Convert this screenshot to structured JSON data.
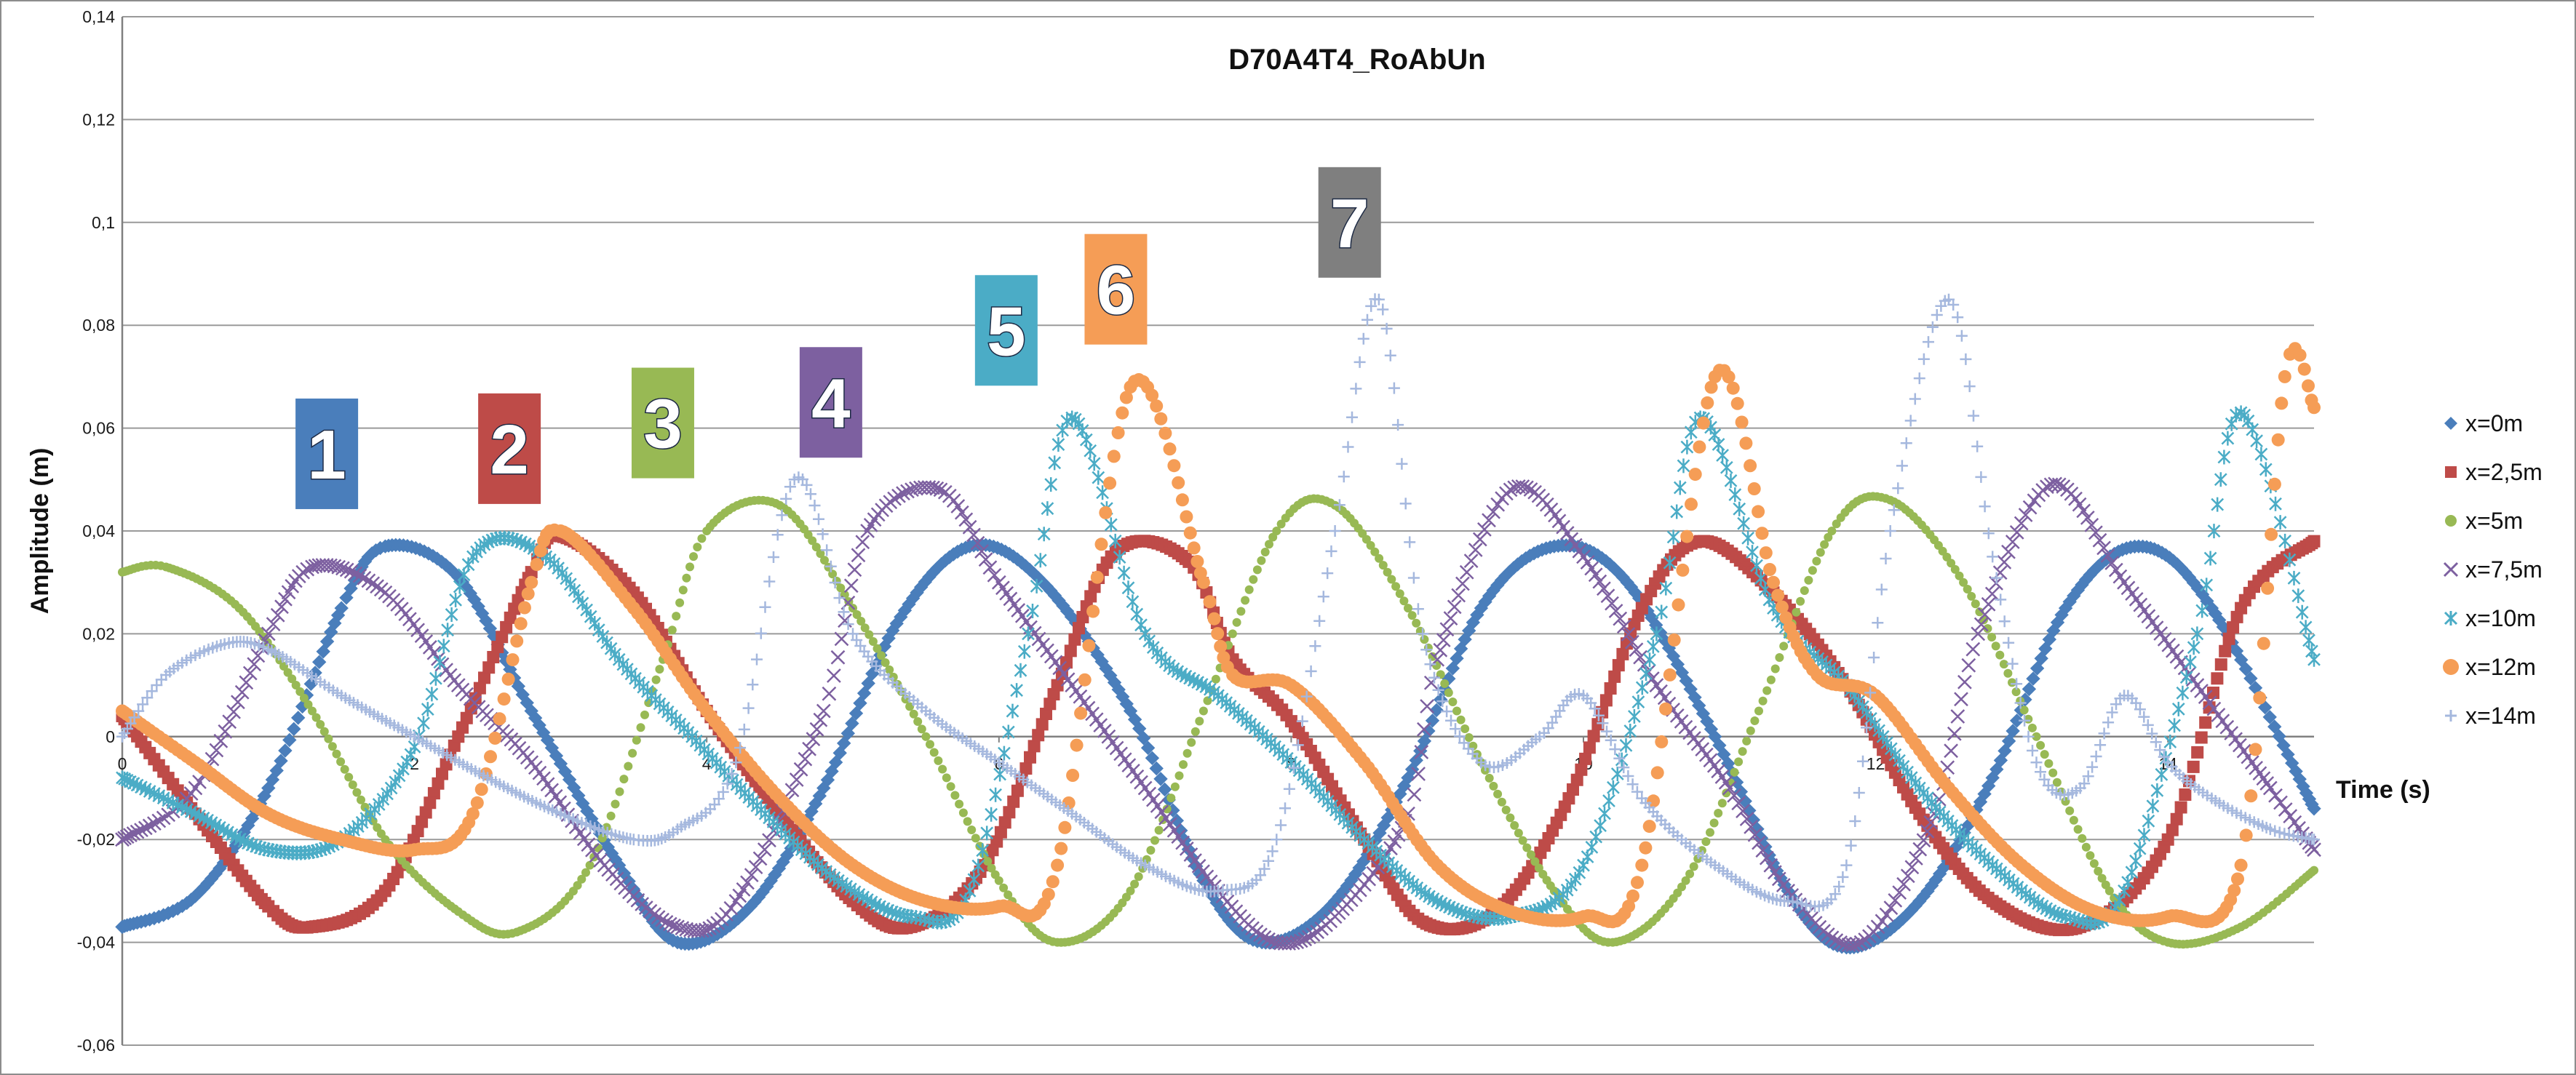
{
  "chart_data": {
    "type": "scatter",
    "title": "D70A4T4_RoAbUn",
    "xlabel": "Time (s)",
    "ylabel": "Amplitude (m)",
    "xlim": [
      0,
      15
    ],
    "ylim": [
      -0.06,
      0.14
    ],
    "x_ticks": [
      "0",
      "2",
      "4",
      "6",
      "8",
      "10",
      "12",
      "14"
    ],
    "y_ticks": [
      "-0,06",
      "-0,04",
      "-0,02",
      "0",
      "0,02",
      "0,04",
      "0,06",
      "0,08",
      "0,1",
      "0,12",
      "0,14"
    ],
    "grid": "horizontal",
    "legend_position": "right",
    "series": [
      {
        "name": "x=0m",
        "color": "#4a7ebb",
        "marker": "diamond",
        "x": [
          0,
          0.5,
          1.0,
          1.5,
          1.8,
          2.3,
          2.8,
          3.4,
          3.8,
          4.3,
          4.8,
          5.3,
          5.8,
          6.3,
          6.9,
          7.4,
          7.8,
          8.3,
          8.8,
          9.3,
          9.8,
          10.3,
          10.9,
          11.4,
          11.8,
          12.3,
          12.8,
          13.3,
          13.8,
          14.3,
          15.0
        ],
        "y": [
          -0.037,
          -0.031,
          -0.01,
          0.025,
          0.037,
          0.031,
          0.005,
          -0.025,
          -0.04,
          -0.033,
          -0.01,
          0.022,
          0.037,
          0.03,
          0.005,
          -0.028,
          -0.04,
          -0.032,
          -0.008,
          0.025,
          0.037,
          0.03,
          0.0,
          -0.03,
          -0.041,
          -0.032,
          -0.008,
          0.025,
          0.037,
          0.025,
          -0.014
        ]
      },
      {
        "name": "x=2,5m",
        "color": "#be4b48",
        "marker": "square",
        "x": [
          0,
          0.5,
          1.0,
          1.3,
          1.8,
          2.3,
          2.8,
          3.0,
          3.5,
          4.0,
          4.5,
          5.0,
          5.4,
          5.9,
          6.4,
          6.8,
          7.3,
          7.6,
          8.0,
          8.5,
          8.9,
          9.4,
          9.9,
          10.4,
          10.8,
          11.3,
          11.8,
          12.3,
          12.8,
          13.4,
          14.0,
          14.5,
          15.0
        ],
        "y": [
          0.004,
          -0.015,
          -0.033,
          -0.037,
          -0.03,
          0.0,
          0.032,
          0.039,
          0.028,
          0.005,
          -0.015,
          -0.032,
          -0.037,
          -0.025,
          0.01,
          0.036,
          0.034,
          0.015,
          0.003,
          -0.02,
          -0.036,
          -0.034,
          -0.012,
          0.025,
          0.038,
          0.028,
          0.01,
          -0.015,
          -0.032,
          -0.037,
          -0.02,
          0.025,
          0.038
        ]
      },
      {
        "name": "x=5m",
        "color": "#98b954",
        "marker": "circle",
        "x": [
          0,
          0.3,
          0.8,
          1.3,
          1.8,
          2.3,
          2.7,
          3.2,
          3.7,
          4.0,
          4.5,
          5.0,
          5.5,
          6.0,
          6.4,
          6.9,
          7.4,
          7.9,
          8.3,
          8.8,
          9.3,
          9.8,
          10.2,
          10.7,
          11.2,
          11.7,
          12.1,
          12.6,
          13.1,
          13.6,
          14.0,
          14.5,
          15.0
        ],
        "y": [
          0.032,
          0.033,
          0.025,
          0.005,
          -0.02,
          -0.034,
          -0.038,
          -0.025,
          0.015,
          0.04,
          0.045,
          0.025,
          0.0,
          -0.028,
          -0.04,
          -0.03,
          0.005,
          0.04,
          0.045,
          0.025,
          -0.005,
          -0.03,
          -0.04,
          -0.028,
          0.005,
          0.04,
          0.046,
          0.03,
          0.0,
          -0.03,
          -0.04,
          -0.037,
          -0.026
        ]
      },
      {
        "name": "x=7,5m",
        "color": "#7d60a0",
        "marker": "x",
        "x": [
          0,
          0.5,
          1.0,
          1.3,
          1.8,
          2.3,
          2.8,
          3.3,
          3.8,
          4.2,
          4.8,
          5.1,
          5.6,
          6.0,
          6.5,
          7.0,
          7.5,
          7.9,
          8.3,
          8.8,
          9.0,
          9.5,
          10.0,
          10.5,
          11.0,
          11.4,
          11.9,
          12.4,
          12.7,
          13.2,
          13.7,
          14.2,
          14.7,
          15.0
        ],
        "y": [
          -0.02,
          -0.01,
          0.02,
          0.033,
          0.028,
          0.01,
          -0.005,
          -0.025,
          -0.037,
          -0.032,
          0.005,
          0.04,
          0.048,
          0.03,
          0.01,
          -0.01,
          -0.03,
          -0.04,
          -0.035,
          -0.015,
          0.015,
          0.048,
          0.035,
          0.01,
          -0.01,
          -0.03,
          -0.04,
          -0.015,
          0.02,
          0.049,
          0.03,
          0.01,
          -0.01,
          -0.022
        ]
      },
      {
        "name": "x=10m",
        "color": "#4bacc6",
        "marker": "star",
        "x": [
          0,
          0.5,
          1.0,
          1.5,
          2.0,
          2.4,
          2.9,
          3.4,
          3.9,
          4.4,
          4.9,
          5.4,
          5.8,
          6.2,
          6.5,
          7.0,
          7.5,
          8.0,
          8.5,
          9.0,
          9.5,
          10.0,
          10.5,
          10.8,
          11.3,
          11.8,
          12.3,
          12.8,
          13.3,
          13.7,
          14.2,
          14.5,
          15.0
        ],
        "y": [
          -0.008,
          -0.015,
          -0.022,
          -0.02,
          -0.002,
          0.035,
          0.035,
          0.015,
          0.0,
          -0.015,
          -0.028,
          -0.035,
          -0.03,
          0.02,
          0.062,
          0.02,
          0.008,
          -0.005,
          -0.02,
          -0.032,
          -0.035,
          -0.025,
          0.02,
          0.062,
          0.025,
          0.01,
          -0.01,
          -0.025,
          -0.035,
          -0.03,
          0.02,
          0.063,
          0.015
        ]
      },
      {
        "name": "x=12m",
        "color": "#f59d56",
        "marker": "circle",
        "x": [
          0,
          0.5,
          1.0,
          1.5,
          2.0,
          2.4,
          2.8,
          3.0,
          3.5,
          4.0,
          4.5,
          5.0,
          5.5,
          6.0,
          6.4,
          6.9,
          7.4,
          7.6,
          8.0,
          8.5,
          9.0,
          9.5,
          10.0,
          10.4,
          10.9,
          11.3,
          11.6,
          12.0,
          12.5,
          13.0,
          13.5,
          14.0,
          14.5,
          14.8,
          15.0
        ],
        "y": [
          0.005,
          -0.005,
          -0.015,
          -0.02,
          -0.022,
          -0.015,
          0.03,
          0.04,
          0.025,
          0.005,
          -0.012,
          -0.025,
          -0.032,
          -0.033,
          -0.025,
          0.068,
          0.03,
          0.012,
          0.01,
          -0.005,
          -0.025,
          -0.034,
          -0.035,
          -0.025,
          0.07,
          0.03,
          0.012,
          0.008,
          -0.01,
          -0.025,
          -0.034,
          -0.035,
          -0.025,
          0.07,
          0.064
        ]
      },
      {
        "name": "x=14m",
        "color": "#a5b8de",
        "marker": "plus",
        "x": [
          0,
          0.3,
          0.7,
          1.0,
          1.5,
          2.0,
          2.5,
          3.0,
          3.5,
          3.8,
          4.2,
          4.6,
          5.0,
          5.5,
          6.0,
          6.5,
          7.0,
          7.5,
          7.9,
          8.3,
          8.6,
          8.9,
          9.3,
          9.7,
          10.0,
          10.4,
          10.9,
          11.4,
          11.8,
          12.1,
          12.5,
          12.8,
          13.1,
          13.4,
          13.7,
          14.0,
          14.3,
          14.7,
          15.0
        ],
        "y": [
          0.0,
          0.012,
          0.018,
          0.017,
          0.008,
          0.0,
          -0.008,
          -0.015,
          -0.02,
          -0.018,
          -0.005,
          0.05,
          0.02,
          0.005,
          -0.005,
          -0.015,
          -0.025,
          -0.03,
          -0.02,
          0.04,
          0.085,
          0.02,
          -0.005,
          0.0,
          0.008,
          -0.012,
          -0.025,
          -0.032,
          -0.025,
          0.04,
          0.085,
          0.035,
          -0.005,
          -0.01,
          0.008,
          -0.005,
          -0.012,
          -0.018,
          -0.02
        ]
      }
    ],
    "annotations": [
      {
        "label": "1",
        "x": 1.4,
        "y": 0.055,
        "color": "#4a7ebb"
      },
      {
        "label": "2",
        "x": 2.65,
        "y": 0.056,
        "color": "#be4b48"
      },
      {
        "label": "3",
        "x": 3.7,
        "y": 0.061,
        "color": "#98b954"
      },
      {
        "label": "4",
        "x": 4.85,
        "y": 0.065,
        "color": "#7d60a0"
      },
      {
        "label": "5",
        "x": 6.05,
        "y": 0.079,
        "color": "#4bacc6"
      },
      {
        "label": "6",
        "x": 6.8,
        "y": 0.087,
        "color": "#f59d56"
      },
      {
        "label": "7",
        "x": 8.4,
        "y": 0.1,
        "color": "#7f7f7f"
      }
    ]
  }
}
